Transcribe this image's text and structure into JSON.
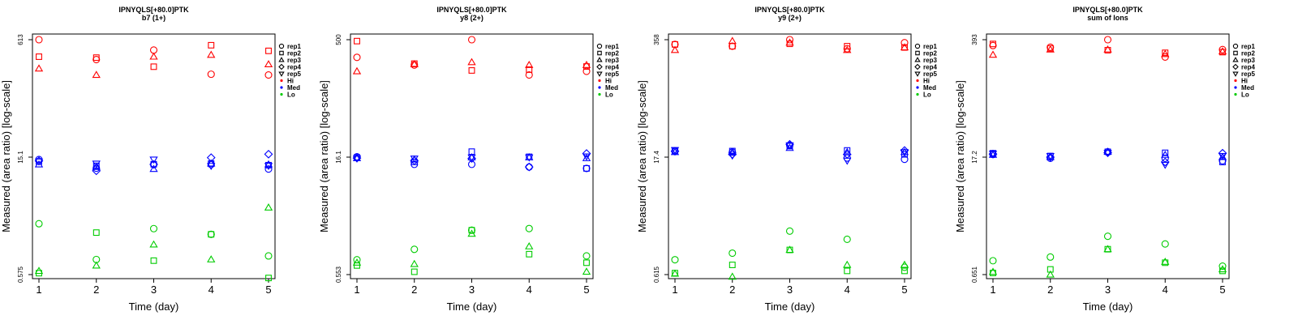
{
  "colors": {
    "Hi": "#ff0000",
    "Med": "#0000ff",
    "Lo": "#00cc00"
  },
  "legend": {
    "reps": [
      {
        "label": "rep1",
        "shape": "circle"
      },
      {
        "label": "rep2",
        "shape": "square"
      },
      {
        "label": "rep3",
        "shape": "triangle-up"
      },
      {
        "label": "rep4",
        "shape": "diamond"
      },
      {
        "label": "rep5",
        "shape": "triangle-down"
      }
    ],
    "groups": [
      "Hi",
      "Med",
      "Lo"
    ]
  },
  "chart_data": [
    {
      "type": "scatter",
      "title": "IPNYQLS[+80.0]PTK",
      "subtitle": "b7 (1+)",
      "xlabel": "Time (day)",
      "ylabel": "Measured (area ratio) [log-scale]",
      "log_y": true,
      "ylim": [
        0.575,
        613
      ],
      "yticks": [
        "0.575",
        "15.1",
        "613"
      ],
      "x": [
        1,
        2,
        3,
        4,
        5
      ],
      "legend_position": "right",
      "grid": false,
      "series": [
        {
          "group": "Hi",
          "rep": "rep1",
          "values": [
            613,
            340,
            450,
            220,
            215
          ]
        },
        {
          "group": "Hi",
          "rep": "rep2",
          "values": [
            370,
            360,
            275,
            520,
            440
          ]
        },
        {
          "group": "Hi",
          "rep": "rep3",
          "values": [
            260,
            215,
            370,
            390,
            295
          ]
        },
        {
          "group": "Med",
          "rep": "rep1",
          "values": [
            17.5,
            13.5,
            15.1,
            15.1,
            13.2
          ]
        },
        {
          "group": "Med",
          "rep": "rep2",
          "values": [
            16.5,
            14.5,
            15.2,
            15.5,
            14.8
          ]
        },
        {
          "group": "Med",
          "rep": "rep3",
          "values": [
            15.1,
            14.0,
            13.2,
            15.5,
            15.1
          ]
        },
        {
          "group": "Med",
          "rep": "rep4",
          "values": [
            16.8,
            12.5,
            15.1,
            18.5,
            20.5
          ]
        },
        {
          "group": "Med",
          "rep": "rep5",
          "values": [
            16.5,
            15.5,
            17.5,
            14.5,
            14.5
          ]
        },
        {
          "group": "Lo",
          "rep": "rep1",
          "values": [
            2.6,
            0.9,
            2.25,
            1.9,
            1.0
          ]
        },
        {
          "group": "Lo",
          "rep": "rep2",
          "values": [
            0.6,
            2.0,
            0.87,
            1.9,
            0.52
          ]
        },
        {
          "group": "Lo",
          "rep": "rep3",
          "values": [
            0.64,
            0.75,
            1.4,
            0.9,
            4.2
          ]
        }
      ]
    },
    {
      "type": "scatter",
      "title": "IPNYQLS[+80.0]PTK",
      "subtitle": "y8 (2+)",
      "xlabel": "Time (day)",
      "ylabel": "Measured (area ratio) [log-scale]",
      "log_y": true,
      "ylim": [
        0.553,
        500
      ],
      "yticks": [
        "0.553",
        "16.1",
        "500"
      ],
      "x": [
        1,
        2,
        3,
        4,
        5
      ],
      "legend_position": "right",
      "grid": false,
      "series": [
        {
          "group": "Hi",
          "rep": "rep1",
          "values": [
            300,
            240,
            500,
            180,
            200
          ]
        },
        {
          "group": "Hi",
          "rep": "rep2",
          "values": [
            480,
            250,
            205,
            210,
            230
          ]
        },
        {
          "group": "Hi",
          "rep": "rep3",
          "values": [
            200,
            245,
            260,
            240,
            240
          ]
        },
        {
          "group": "Med",
          "rep": "rep1",
          "values": [
            16.8,
            13.5,
            13.5,
            12.5,
            12.0
          ]
        },
        {
          "group": "Med",
          "rep": "rep2",
          "values": [
            16.5,
            14.5,
            19.5,
            16.8,
            12.0
          ]
        },
        {
          "group": "Med",
          "rep": "rep3",
          "values": [
            16.1,
            15.5,
            16.5,
            16.5,
            16.1
          ]
        },
        {
          "group": "Med",
          "rep": "rep4",
          "values": [
            16.2,
            15.0,
            16.0,
            12.5,
            18.5
          ]
        },
        {
          "group": "Med",
          "rep": "rep5",
          "values": [
            16.0,
            16.0,
            16.5,
            16.5,
            17.0
          ]
        },
        {
          "group": "Lo",
          "rep": "rep1",
          "values": [
            0.85,
            1.15,
            2.0,
            2.1,
            0.95
          ]
        },
        {
          "group": "Lo",
          "rep": "rep2",
          "values": [
            0.72,
            0.6,
            2.0,
            1.0,
            0.78
          ]
        },
        {
          "group": "Lo",
          "rep": "rep3",
          "values": [
            0.78,
            0.75,
            1.8,
            1.25,
            0.6
          ]
        }
      ]
    },
    {
      "type": "scatter",
      "title": "IPNYQLS[+80.0]PTK",
      "subtitle": "y9 (2+)",
      "xlabel": "Time (day)",
      "ylabel": "Measured (area ratio) [log-scale]",
      "log_y": true,
      "ylim": [
        0.615,
        358
      ],
      "yticks": [
        "0.615",
        "17.4",
        "358"
      ],
      "x": [
        1,
        2,
        3,
        4,
        5
      ],
      "legend_position": "right",
      "grid": false,
      "series": [
        {
          "group": "Hi",
          "rep": "rep1",
          "values": [
            315,
            300,
            358,
            280,
            330
          ]
        },
        {
          "group": "Hi",
          "rep": "rep2",
          "values": [
            315,
            300,
            320,
            300,
            290
          ]
        },
        {
          "group": "Hi",
          "rep": "rep3",
          "values": [
            270,
            345,
            330,
            270,
            290
          ]
        },
        {
          "group": "Med",
          "rep": "rep1",
          "values": [
            17.5,
            17.0,
            20.5,
            14.5,
            14.0
          ]
        },
        {
          "group": "Med",
          "rep": "rep2",
          "values": [
            17.8,
            17.5,
            20.0,
            17.8,
            16.0
          ]
        },
        {
          "group": "Med",
          "rep": "rep3",
          "values": [
            17.0,
            17.0,
            19.0,
            17.0,
            17.0
          ]
        },
        {
          "group": "Med",
          "rep": "rep4",
          "values": [
            17.4,
            16.0,
            21.0,
            16.0,
            17.8
          ]
        },
        {
          "group": "Med",
          "rep": "rep5",
          "values": [
            18.0,
            15.5,
            20.5,
            13.5,
            17.0
          ]
        },
        {
          "group": "Lo",
          "rep": "rep1",
          "values": [
            0.92,
            1.1,
            2.0,
            1.6,
            0.75
          ]
        },
        {
          "group": "Lo",
          "rep": "rep2",
          "values": [
            0.64,
            0.8,
            1.2,
            0.68,
            0.68
          ]
        },
        {
          "group": "Lo",
          "rep": "rep3",
          "values": [
            0.63,
            0.58,
            1.2,
            0.8,
            0.8
          ]
        }
      ]
    },
    {
      "type": "scatter",
      "title": "IPNYQLS[+80.0]PTK",
      "subtitle": "sum of Ions",
      "xlabel": "Time (day)",
      "ylabel": "Measured (area ratio) [log-scale]",
      "log_y": true,
      "ylim": [
        0.651,
        393
      ],
      "yticks": [
        "0.651",
        "17.2",
        "393"
      ],
      "x": [
        1,
        2,
        3,
        4,
        5
      ],
      "legend_position": "right",
      "grid": false,
      "series": [
        {
          "group": "Hi",
          "rep": "rep1",
          "values": [
            335,
            320,
            393,
            245,
            300
          ]
        },
        {
          "group": "Hi",
          "rep": "rep2",
          "values": [
            350,
            310,
            295,
            275,
            280
          ]
        },
        {
          "group": "Hi",
          "rep": "rep3",
          "values": [
            260,
            300,
            300,
            265,
            285
          ]
        },
        {
          "group": "Med",
          "rep": "rep1",
          "values": [
            17.2,
            15.5,
            18.5,
            15.5,
            14.5
          ]
        },
        {
          "group": "Med",
          "rep": "rep2",
          "values": [
            17.8,
            16.5,
            18.5,
            18.0,
            14.0
          ]
        },
        {
          "group": "Med",
          "rep": "rep3",
          "values": [
            17.0,
            16.0,
            18.5,
            17.0,
            16.0
          ]
        },
        {
          "group": "Med",
          "rep": "rep4",
          "values": [
            17.4,
            16.0,
            18.0,
            14.0,
            17.8
          ]
        },
        {
          "group": "Med",
          "rep": "rep5",
          "values": [
            17.6,
            16.5,
            18.0,
            13.0,
            16.5
          ]
        },
        {
          "group": "Lo",
          "rep": "rep1",
          "values": [
            0.95,
            1.05,
            1.85,
            1.5,
            0.82
          ]
        },
        {
          "group": "Lo",
          "rep": "rep2",
          "values": [
            0.68,
            0.75,
            1.3,
            0.9,
            0.72
          ]
        },
        {
          "group": "Lo",
          "rep": "rep3",
          "values": [
            0.7,
            0.65,
            1.3,
            0.92,
            0.75
          ]
        }
      ]
    }
  ]
}
